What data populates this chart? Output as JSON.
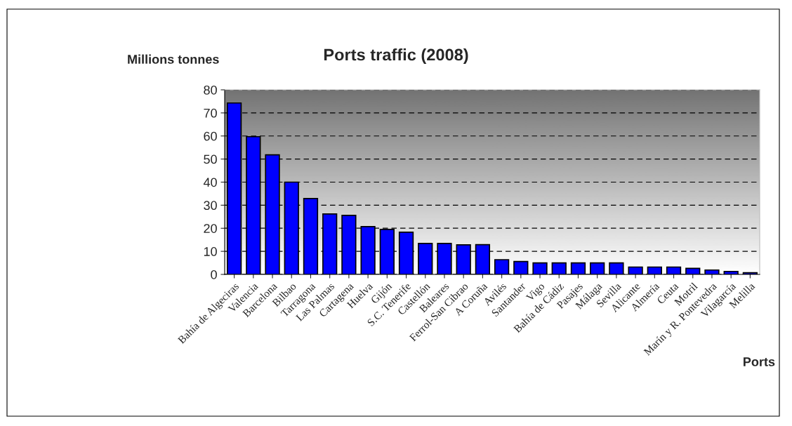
{
  "chart_data": {
    "type": "bar",
    "title": "Ports traffic (2008)",
    "ylabel": "Millions tonnes",
    "xlabel": "Ports",
    "categories": [
      "Bahía de Algeciras",
      "Valencia",
      "Barcelona",
      "Bilbao",
      "Tarragona",
      "Las Palmas",
      "Cartagena",
      "Huelva",
      "Gijón",
      "S.C. Tenerife",
      "Castellón",
      "Baleares",
      "Ferrol-San Cibrao",
      "A Coruña",
      "Avilés",
      "Santander",
      "Vigo",
      "Bahía de Cádiz",
      "Pasajes",
      "Málaga",
      "Sevilla",
      "Alicante",
      "Almería",
      "Ceuta",
      "Motril",
      "Marín y R. Pontevedra",
      "Vilagarcía",
      "Melilla"
    ],
    "values": [
      74.3,
      59.7,
      51.8,
      40,
      32.9,
      26.2,
      25.6,
      20.7,
      19.5,
      18.3,
      13.4,
      13.4,
      12.8,
      12.9,
      6.4,
      5.6,
      5.0,
      5.0,
      5.0,
      5.0,
      5.0,
      3.2,
      3.2,
      3.2,
      2.6,
      1.9,
      1.3,
      0.7
    ],
    "color": "#0000ff",
    "ylim": [
      0,
      80
    ],
    "yticks": [
      0,
      10,
      20,
      30,
      40,
      50,
      60,
      70,
      80
    ],
    "grid": "y",
    "legend": false
  }
}
